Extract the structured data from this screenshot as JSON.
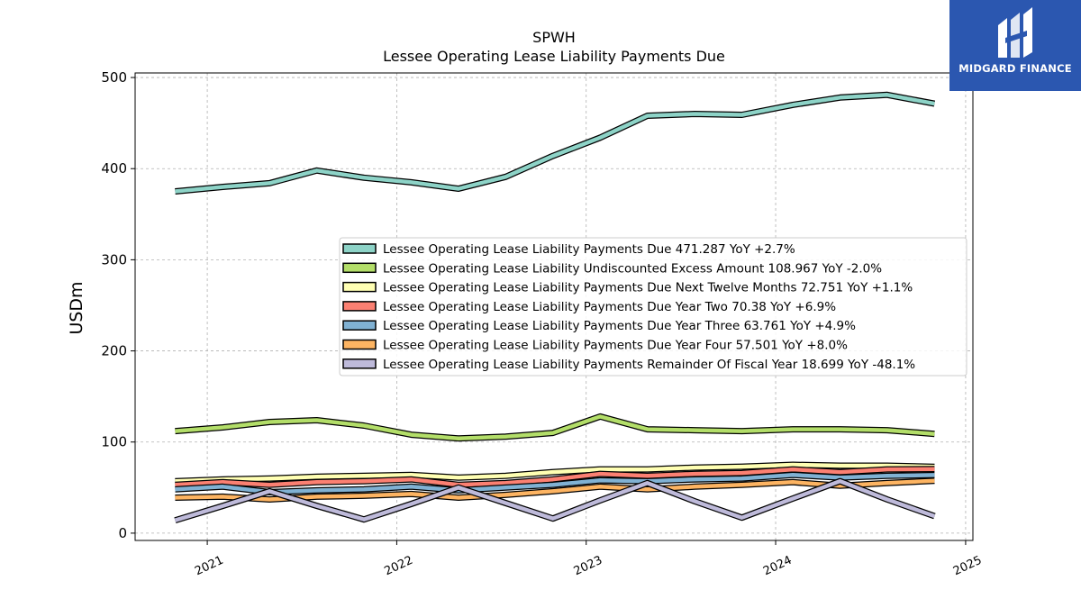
{
  "brand": {
    "name": "MIDGARD FINANCE",
    "bg_color": "#2b57b0"
  },
  "chart_data": {
    "type": "line",
    "title": "SPWH",
    "subtitle": "Lessee Operating Lease Liability Payments Due",
    "xlabel": "",
    "ylabel": "USDm",
    "xlim": [
      "2020-08-15",
      "2025-01-15"
    ],
    "ylim": [
      -8,
      505
    ],
    "yticks": [
      0,
      100,
      200,
      300,
      400,
      500
    ],
    "xticks": [
      "2021",
      "2022",
      "2023",
      "2024",
      "2025"
    ],
    "grid": true,
    "legend_position": "center-right",
    "x": [
      "2020-10-31",
      "2021-01-31",
      "2021-05-01",
      "2021-07-31",
      "2021-10-30",
      "2022-01-29",
      "2022-04-30",
      "2022-07-30",
      "2022-10-29",
      "2023-01-28",
      "2023-04-29",
      "2023-07-29",
      "2023-10-28",
      "2024-02-03",
      "2024-05-04",
      "2024-08-03",
      "2024-11-02"
    ],
    "series": [
      {
        "name": "Lessee Operating Lease Liability Payments Due",
        "legend": "Lessee Operating Lease Liability Payments Due  471.287 YoY +2.7%",
        "color": "#8dd3c7",
        "values": [
          375,
          380,
          384,
          398,
          390,
          385,
          378,
          391,
          414,
          434,
          458,
          460,
          459,
          470,
          478,
          481,
          471.287
        ]
      },
      {
        "name": "Lessee Operating Lease Liability Undiscounted Excess Amount",
        "legend": "Lessee Operating Lease Liability Undiscounted Excess Amount  108.967 YoY -2.0%",
        "color": "#b3de69",
        "values": [
          112,
          116,
          122,
          124,
          118,
          108,
          104,
          106,
          110,
          128,
          114,
          113,
          112,
          114,
          114,
          113,
          108.967
        ]
      },
      {
        "name": "Lessee Operating Lease Liability Payments Due Next Twelve Months",
        "legend": "Lessee Operating Lease Liability Payments Due Next Twelve Months  72.751 YoY +1.1%",
        "color": "#ffffb3",
        "values": [
          57,
          59,
          60,
          62,
          63,
          64,
          61,
          63,
          67,
          70,
          70,
          72,
          73,
          75,
          74,
          74,
          72.751
        ]
      },
      {
        "name": "Lessee Operating Lease Liability Payments Due Year Two",
        "legend": "Lessee Operating Lease Liability Payments Due Year Two  70.38 YoY +6.9%",
        "color": "#fb8072",
        "values": [
          53,
          56,
          53,
          56,
          57,
          59,
          53,
          55,
          59,
          65,
          63,
          65,
          66,
          70,
          67,
          70,
          70.38
        ]
      },
      {
        "name": "Lessee Operating Lease Liability Payments Due Year Three",
        "legend": "Lessee Operating Lease Liability Payments Due Year Three  63.761 YoY +4.9%",
        "color": "#80b1d3",
        "values": [
          48,
          51,
          45,
          47,
          48,
          51,
          47,
          50,
          53,
          58,
          57,
          59,
          60,
          64,
          61,
          63,
          63.761
        ]
      },
      {
        "name": "Lessee Operating Lease Liability Payments Due Year Four",
        "legend": "Lessee Operating Lease Liability Payments Due Year Four  57.501 YoY +8.0%",
        "color": "#fdb462",
        "values": [
          39,
          40,
          37,
          40,
          41,
          43,
          39,
          42,
          46,
          51,
          48,
          51,
          53,
          56,
          52,
          55,
          57.501
        ]
      },
      {
        "name": "Lessee Operating Lease Liability Payments Remainder Of Fiscal Year",
        "legend": "Lessee Operating Lease Liability Payments Remainder Of Fiscal Year  18.699 YoY -48.1%",
        "color": "#bebada",
        "values": [
          14,
          30,
          46,
          30,
          15,
          32,
          50,
          33,
          16,
          36,
          55,
          35,
          17,
          38,
          57,
          37,
          18.699
        ]
      }
    ]
  }
}
